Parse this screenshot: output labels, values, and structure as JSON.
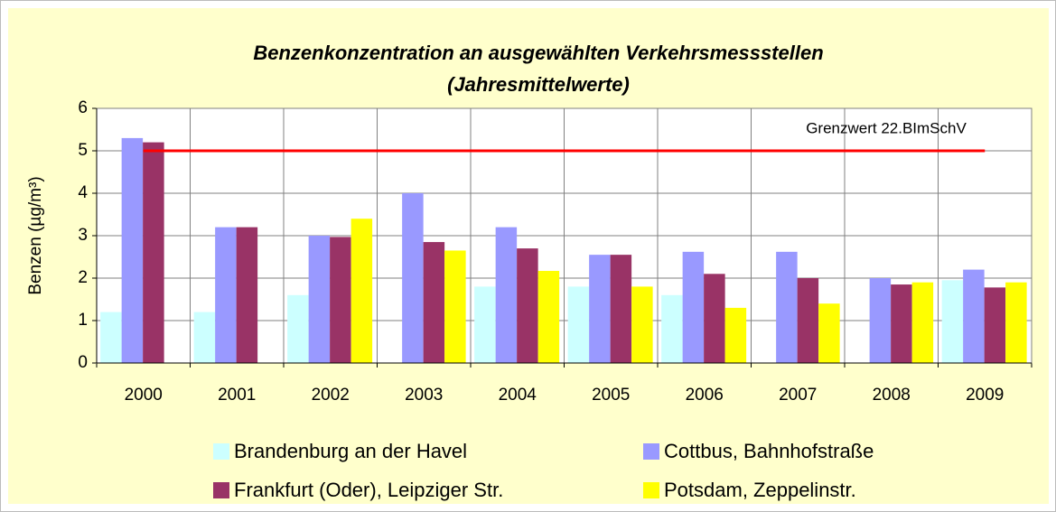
{
  "chart_data": {
    "type": "bar",
    "title": [
      "Benzenkonzentration an ausgewählten Verkehrsmessstellen",
      "(Jahresmittelwerte)"
    ],
    "y_label": "Benzen (µg/m³)",
    "categories": [
      "2000",
      "2001",
      "2002",
      "2003",
      "2004",
      "2005",
      "2006",
      "2007",
      "2008",
      "2009"
    ],
    "series": [
      {
        "name": "Brandenburg an der Havel",
        "color": "#ccffff",
        "values": [
          1.2,
          1.2,
          1.6,
          null,
          1.8,
          1.8,
          1.6,
          null,
          null,
          1.95
        ]
      },
      {
        "name": "Cottbus, Bahnhofstraße",
        "color": "#9999ff",
        "values": [
          5.3,
          3.2,
          3.0,
          4.0,
          3.2,
          2.55,
          2.62,
          2.62,
          2.0,
          2.2
        ]
      },
      {
        "name": "Frankfurt (Oder), Leipziger Str.",
        "color": "#993366",
        "values": [
          5.2,
          3.2,
          2.97,
          2.85,
          2.7,
          2.55,
          2.1,
          2.0,
          1.85,
          1.78
        ]
      },
      {
        "name": "Potsdam, Zeppelinstr.",
        "color": "#ffff00",
        "values": [
          null,
          null,
          3.4,
          2.65,
          2.17,
          1.8,
          1.3,
          1.4,
          1.9,
          1.9
        ]
      }
    ],
    "threshold": {
      "value": 5,
      "label": "Grenzwert 22.BImSchV",
      "color": "#ff0000"
    },
    "ylim": [
      0,
      6
    ],
    "yticks": [
      0,
      1,
      2,
      3,
      4,
      5,
      6
    ],
    "grid": true
  }
}
